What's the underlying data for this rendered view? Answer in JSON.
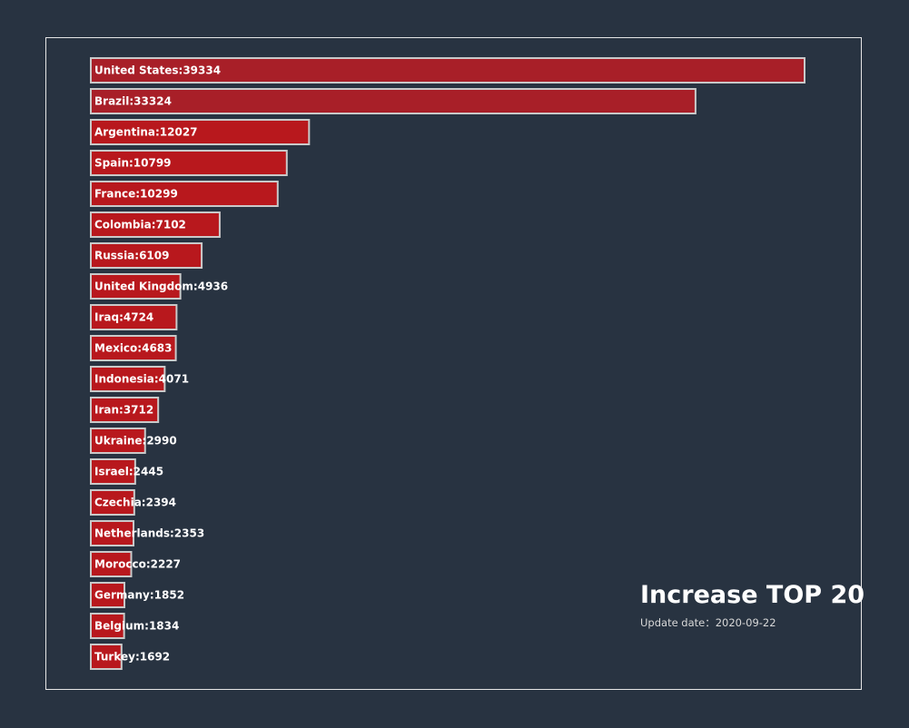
{
  "chart_data": {
    "type": "bar",
    "orientation": "horizontal",
    "title": "Increase TOP 20",
    "subtitle": "Update date：2020-09-22",
    "label_separator": ":",
    "categories": [
      "United States",
      "Brazil",
      "Argentina",
      "Spain",
      "France",
      "Colombia",
      "Russia",
      "United Kingdom",
      "Iraq",
      "Mexico",
      "Indonesia",
      "Iran",
      "Ukraine",
      "Israel",
      "Czechia",
      "Netherlands",
      "Morocco",
      "Germany",
      "Belgium",
      "Turkey"
    ],
    "values": [
      39334,
      33324,
      12027,
      10799,
      10299,
      7102,
      6109,
      4936,
      4724,
      4683,
      4071,
      3712,
      2990,
      2445,
      2394,
      2353,
      2227,
      1852,
      1834,
      1692
    ],
    "colors": {
      "background": "#283341",
      "bar_top": "#a81f28",
      "bar": "#b8181d",
      "bar_border": "#c9c9c9",
      "label": "#ffffff",
      "frame": "#e6e6e6"
    },
    "xlim": [
      0,
      39334
    ],
    "grid": false,
    "legend": "none"
  }
}
